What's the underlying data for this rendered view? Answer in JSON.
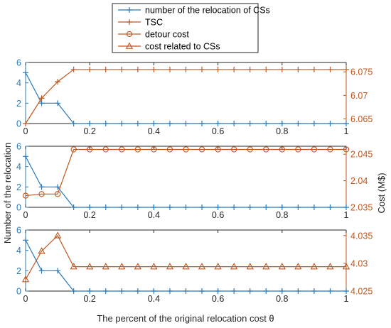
{
  "colors": {
    "blue": "#2a7ab9",
    "orange": "#c0571e",
    "frame": "#262626",
    "text": "#262626"
  },
  "legend": {
    "placement": "top-center",
    "entries": [
      {
        "label": "number of the relocation of CSs",
        "marker": "plus",
        "color": "#2a7ab9"
      },
      {
        "label": "TSC",
        "marker": "plus",
        "color": "#c0571e"
      },
      {
        "label": "detour cost",
        "marker": "circle",
        "color": "#c0571e"
      },
      {
        "label": "cost related to CSs",
        "marker": "triangle",
        "color": "#c0571e"
      }
    ]
  },
  "axes_text": {
    "xlabel": "The percent of the original relocation cost θ",
    "ylabel_left": "Number of the relocation",
    "ylabel_right": "Cost (M$)"
  },
  "chart_data": [
    {
      "type": "line",
      "panel": "top",
      "x": [
        0,
        0.05,
        0.1,
        0.15,
        0.2,
        0.25,
        0.3,
        0.35,
        0.4,
        0.45,
        0.5,
        0.55,
        0.6,
        0.65,
        0.7,
        0.75,
        0.8,
        0.85,
        0.9,
        0.95,
        1
      ],
      "xlim": [
        0,
        1
      ],
      "xticks": [
        0,
        0.2,
        0.4,
        0.6,
        0.8,
        1
      ],
      "xticklabels": [
        "0",
        "0.2",
        "0.4",
        "0.6",
        "0.8",
        "1"
      ],
      "left_axis": {
        "ylim": [
          0,
          6
        ],
        "ticks": [
          0,
          2,
          4,
          6
        ],
        "ticklabels": [
          "0",
          "2",
          "4",
          "6"
        ],
        "color": "#2a7ab9"
      },
      "right_axis": {
        "ylim": [
          6.064,
          6.077
        ],
        "ticks": [
          6.065,
          6.07,
          6.075
        ],
        "ticklabels": [
          "6.065",
          "6.07",
          "6.075"
        ],
        "color": "#c0571e"
      },
      "series": [
        {
          "name": "number of the relocation of CSs",
          "axis": "left",
          "marker": "plus",
          "color": "#2a7ab9",
          "values": [
            5,
            2,
            2,
            0,
            0,
            0,
            0,
            0,
            0,
            0,
            0,
            0,
            0,
            0,
            0,
            0,
            0,
            0,
            0,
            0,
            0
          ]
        },
        {
          "name": "TSC",
          "axis": "right",
          "marker": "plus",
          "color": "#c0571e",
          "values": [
            6.064,
            6.0694,
            6.0729,
            6.0755,
            6.0755,
            6.0755,
            6.0755,
            6.0755,
            6.0755,
            6.0755,
            6.0755,
            6.0755,
            6.0755,
            6.0755,
            6.0755,
            6.0755,
            6.0755,
            6.0755,
            6.0755,
            6.0755,
            6.0755
          ]
        }
      ]
    },
    {
      "type": "line",
      "panel": "middle",
      "x": [
        0,
        0.05,
        0.1,
        0.15,
        0.2,
        0.25,
        0.3,
        0.35,
        0.4,
        0.45,
        0.5,
        0.55,
        0.6,
        0.65,
        0.7,
        0.75,
        0.8,
        0.85,
        0.9,
        0.95,
        1
      ],
      "xlim": [
        0,
        1
      ],
      "xticks": [
        0,
        0.2,
        0.4,
        0.6,
        0.8,
        1
      ],
      "xticklabels": [
        "0",
        "0.2",
        "0.4",
        "0.6",
        "0.8",
        "1"
      ],
      "left_axis": {
        "ylim": [
          0,
          6
        ],
        "ticks": [
          0,
          2,
          4,
          6
        ],
        "ticklabels": [
          "0",
          "2",
          "4",
          "6"
        ],
        "color": "#2a7ab9"
      },
      "right_axis": {
        "ylim": [
          2.035,
          2.0465
        ],
        "ticks": [
          2.035,
          2.04,
          2.045
        ],
        "ticklabels": [
          "2.035",
          "2.04",
          "2.045"
        ],
        "color": "#c0571e"
      },
      "series": [
        {
          "name": "number of the relocation of CSs",
          "axis": "left",
          "marker": "plus",
          "color": "#2a7ab9",
          "values": [
            5,
            2,
            2,
            0,
            0,
            0,
            0,
            0,
            0,
            0,
            0,
            0,
            0,
            0,
            0,
            0,
            0,
            0,
            0,
            0,
            0
          ]
        },
        {
          "name": "detour cost",
          "axis": "right",
          "marker": "circle",
          "color": "#c0571e",
          "values": [
            2.0372,
            2.0375,
            2.0375,
            2.0459,
            2.0459,
            2.0459,
            2.0459,
            2.0459,
            2.0459,
            2.0459,
            2.0459,
            2.0459,
            2.0459,
            2.0459,
            2.0459,
            2.0459,
            2.0459,
            2.0459,
            2.0459,
            2.0459,
            2.0459
          ]
        }
      ]
    },
    {
      "type": "line",
      "panel": "bottom",
      "x": [
        0,
        0.05,
        0.1,
        0.15,
        0.2,
        0.25,
        0.3,
        0.35,
        0.4,
        0.45,
        0.5,
        0.55,
        0.6,
        0.65,
        0.7,
        0.75,
        0.8,
        0.85,
        0.9,
        0.95,
        1
      ],
      "xlim": [
        0,
        1
      ],
      "xticks": [
        0,
        0.2,
        0.4,
        0.6,
        0.8,
        1
      ],
      "xticklabels": [
        "0",
        "0.2",
        "0.4",
        "0.6",
        "0.8",
        "1"
      ],
      "left_axis": {
        "ylim": [
          0,
          6
        ],
        "ticks": [
          0,
          2,
          4,
          6
        ],
        "ticklabels": [
          "0",
          "2",
          "4",
          "6"
        ],
        "color": "#2a7ab9"
      },
      "right_axis": {
        "ylim": [
          4.025,
          4.036
        ],
        "ticks": [
          4.025,
          4.03,
          4.035
        ],
        "ticklabels": [
          "4.025",
          "4.03",
          "4.035"
        ],
        "color": "#c0571e"
      },
      "series": [
        {
          "name": "number of the relocation of CSs",
          "axis": "left",
          "marker": "plus",
          "color": "#2a7ab9",
          "values": [
            5,
            2,
            2,
            0,
            0,
            0,
            0,
            0,
            0,
            0,
            0,
            0,
            0,
            0,
            0,
            0,
            0,
            0,
            0,
            0,
            0
          ]
        },
        {
          "name": "cost related to CSs",
          "axis": "right",
          "marker": "triangle",
          "color": "#c0571e",
          "values": [
            4.0271,
            4.0322,
            4.035,
            4.0294,
            4.0294,
            4.0294,
            4.0294,
            4.0294,
            4.0294,
            4.0294,
            4.0294,
            4.0294,
            4.0294,
            4.0294,
            4.0294,
            4.0294,
            4.0294,
            4.0294,
            4.0294,
            4.0294,
            4.0294
          ]
        }
      ]
    }
  ]
}
